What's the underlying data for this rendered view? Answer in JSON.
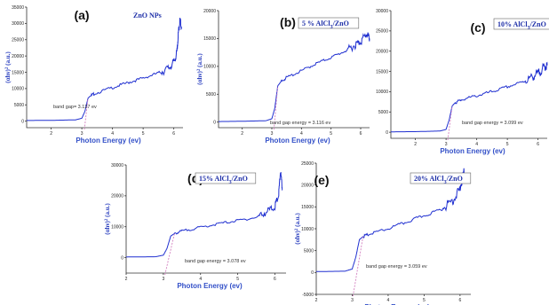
{
  "chart_data": [
    {
      "type": "line",
      "panel_label": "(a)",
      "sample_label": "ZnO NPs",
      "annotation": "band gap= 3.127 ev",
      "band_gap_ev": 3.127,
      "xlabel": "Photon Energy (ev)",
      "ylabel": "(αhν)² (a.u.)",
      "xlim": [
        1.2,
        6.3
      ],
      "ylim": [
        -2000,
        35000
      ],
      "xticks": [
        2,
        3,
        4,
        5,
        6
      ],
      "yticks": [
        0,
        5000,
        10000,
        15000,
        20000,
        25000,
        30000,
        35000
      ],
      "series": [
        {
          "x": [
            1.2,
            2.0,
            2.8,
            3.0,
            3.1,
            3.2,
            3.25,
            3.4,
            4.0,
            4.5,
            5.0,
            5.5,
            5.8,
            6.0,
            6.1,
            6.15,
            6.2,
            6.25
          ],
          "y": [
            200,
            250,
            400,
            900,
            3000,
            7000,
            7500,
            8400,
            10300,
            11800,
            13200,
            14800,
            16000,
            18000,
            21000,
            27000,
            31000,
            29000
          ]
        }
      ]
    },
    {
      "type": "line",
      "panel_label": "(b)",
      "sample_label": "5 % AlCl3/ZnO",
      "annotation": "band gap energy = 3.116 ev",
      "band_gap_ev": 3.116,
      "xlabel": "Photon Energy (ev)",
      "ylabel": "(αhν)² (a.u.)",
      "xlim": [
        1.2,
        6.3
      ],
      "ylim": [
        -1000,
        20000
      ],
      "xticks": [
        2,
        3,
        4,
        5,
        6
      ],
      "yticks": [
        0,
        5000,
        10000,
        15000,
        20000
      ],
      "series": [
        {
          "x": [
            1.2,
            2.0,
            2.8,
            3.0,
            3.1,
            3.2,
            3.3,
            3.5,
            4.0,
            4.5,
            5.0,
            5.5,
            5.8,
            6.0,
            6.2,
            6.3
          ],
          "y": [
            100,
            150,
            250,
            600,
            2500,
            6500,
            7200,
            8000,
            9200,
            10500,
            11600,
            12800,
            13800,
            14500,
            15800,
            15000
          ]
        }
      ]
    },
    {
      "type": "line",
      "panel_label": "(c)",
      "sample_label": "10% AlCl3/ZnO",
      "annotation": "band gap energy = 3.099 ev",
      "band_gap_ev": 3.099,
      "xlabel": "Photon Energy (ev)",
      "ylabel": "",
      "xlim": [
        1.2,
        6.3
      ],
      "ylim": [
        -1500,
        30000
      ],
      "xticks": [
        2,
        3,
        4,
        5,
        6
      ],
      "yticks": [
        0,
        5000,
        10000,
        15000,
        20000,
        25000,
        30000
      ],
      "series": [
        {
          "x": [
            1.2,
            2.0,
            2.8,
            3.0,
            3.1,
            3.2,
            3.3,
            3.5,
            4.0,
            4.5,
            5.0,
            5.5,
            5.8,
            6.0,
            6.2,
            6.3
          ],
          "y": [
            100,
            150,
            300,
            700,
            3000,
            6500,
            7300,
            8000,
            9000,
            10000,
            11200,
            12400,
            13500,
            14500,
            16000,
            16500
          ]
        }
      ]
    },
    {
      "type": "line",
      "panel_label": "(d)",
      "sample_label": "15% AlCl3/ZnO",
      "annotation": "band gap energy = 3.078 ev",
      "band_gap_ev": 3.078,
      "xlabel": "Photon Energy (ev)",
      "ylabel": "(αhν)² (a.u.)",
      "xlim": [
        2.0,
        6.3
      ],
      "ylim": [
        -5000,
        30000
      ],
      "xticks": [
        2,
        3,
        4,
        5,
        6
      ],
      "yticks": [
        0,
        10000,
        20000,
        30000
      ],
      "series": [
        {
          "x": [
            2.0,
            2.8,
            3.0,
            3.1,
            3.2,
            3.3,
            3.5,
            4.0,
            4.5,
            5.0,
            5.5,
            5.8,
            6.0,
            6.1,
            6.15,
            6.2
          ],
          "y": [
            200,
            300,
            800,
            3000,
            7000,
            7800,
            8600,
            9800,
            11000,
            12000,
            13000,
            15000,
            16500,
            20000,
            28000,
            22000
          ]
        }
      ]
    },
    {
      "type": "line",
      "panel_label": "(e)",
      "sample_label": "20% AlCl3/ZnO",
      "annotation": "band gap energy = 3.059 ev",
      "band_gap_ev": 3.059,
      "xlabel": "Photon Energy (ev)",
      "ylabel": "(αhν)² (a.u.)",
      "xlim": [
        2.0,
        6.3
      ],
      "ylim": [
        -5000,
        25000
      ],
      "xticks": [
        2,
        3,
        4,
        5,
        6
      ],
      "yticks": [
        -5000,
        0,
        5000,
        10000,
        15000,
        20000,
        25000
      ],
      "series": [
        {
          "x": [
            2.0,
            2.8,
            3.0,
            3.1,
            3.2,
            3.3,
            3.5,
            4.0,
            4.5,
            5.0,
            5.5,
            5.8,
            6.0,
            6.1,
            6.2
          ],
          "y": [
            200,
            300,
            800,
            3500,
            7500,
            8200,
            8800,
            10000,
            11500,
            13000,
            14500,
            16500,
            19000,
            23000,
            21000
          ]
        }
      ]
    }
  ]
}
